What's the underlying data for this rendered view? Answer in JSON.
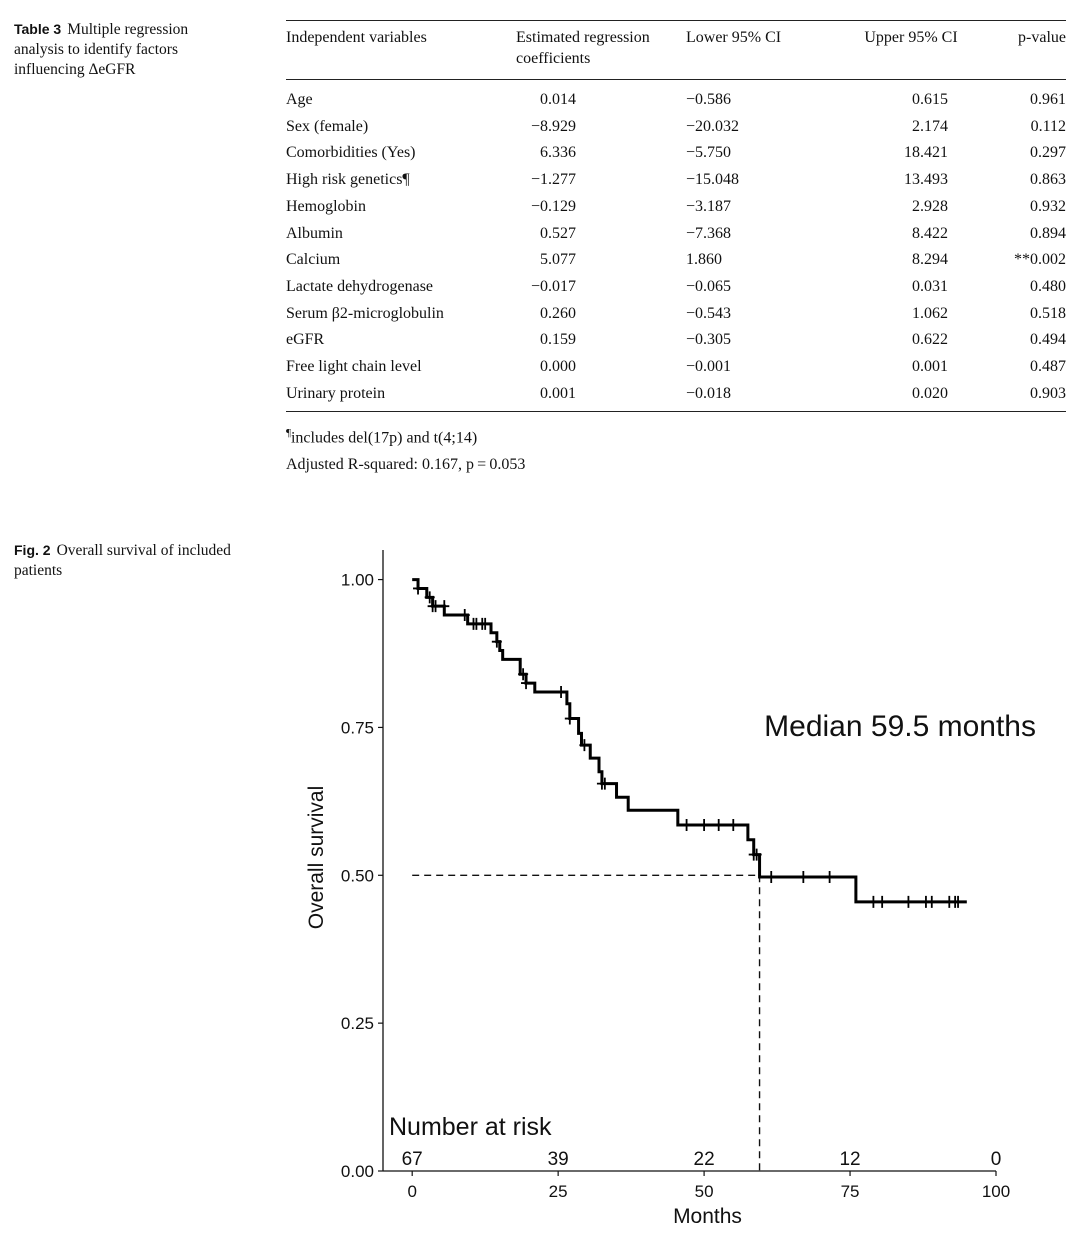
{
  "table3": {
    "label": "Table 3",
    "caption": "Multiple regression analysis to identify factors influencing ΔeGFR",
    "headers": [
      "Independent variables",
      "Estimated regression coefficients",
      "Lower 95% CI",
      "Upper 95% CI",
      "p-value"
    ],
    "rows": [
      [
        "Age",
        "0.014",
        "−0.586",
        "0.615",
        "0.961"
      ],
      [
        "Sex (female)",
        "−8.929",
        "−20.032",
        "2.174",
        "0.112"
      ],
      [
        "Comorbidities (Yes)",
        "6.336",
        "−5.750",
        "18.421",
        "0.297"
      ],
      [
        "High risk genetics¶",
        "−1.277",
        "−15.048",
        "13.493",
        "0.863"
      ],
      [
        "Hemoglobin",
        "−0.129",
        "−3.187",
        "2.928",
        "0.932"
      ],
      [
        "Albumin",
        "0.527",
        "−7.368",
        "8.422",
        "0.894"
      ],
      [
        "Calcium",
        "5.077",
        "1.860",
        "8.294",
        "**0.002"
      ],
      [
        "Lactate dehydrogenase",
        "−0.017",
        "−0.065",
        "0.031",
        "0.480"
      ],
      [
        "Serum β2-microglobulin",
        "0.260",
        "−0.543",
        "1.062",
        "0.518"
      ],
      [
        "eGFR",
        "0.159",
        "−0.305",
        "0.622",
        "0.494"
      ],
      [
        "Free light chain level",
        "0.000",
        "−0.001",
        "0.001",
        "0.487"
      ],
      [
        "Urinary protein",
        "0.001",
        "−0.018",
        "0.020",
        "0.903"
      ]
    ],
    "footnote_mark": "¶",
    "footnote_text": "includes del(17p) and t(4;14)",
    "adjusted_r2": "Adjusted R-squared: 0.167, p = 0.053"
  },
  "fig2": {
    "label": "Fig. 2",
    "caption": "Overall survival of included patients"
  },
  "chart_data": {
    "type": "line",
    "xlabel": "Months",
    "ylabel": "Overall survival",
    "xlim": [
      -5,
      100
    ],
    "ylim": [
      0,
      1.05
    ],
    "xticks": [
      0,
      25,
      50,
      75,
      100
    ],
    "yticks": [
      "0.00",
      "0.25",
      "0.50",
      "0.75",
      "1.00"
    ],
    "ytick_values": [
      0,
      0.25,
      0.5,
      0.75,
      1.0
    ],
    "annotation": "Median 59.5 months",
    "median_months": 59.5,
    "median_survival": 0.5,
    "risk_table_title": "Number at risk",
    "risk_times": [
      0,
      25,
      50,
      75,
      100
    ],
    "risk_counts": [
      "67",
      "39",
      "22",
      "12",
      "0"
    ],
    "series": [
      {
        "steps": [
          [
            0,
            1.0
          ],
          [
            1,
            0.985
          ],
          [
            2.5,
            0.97
          ],
          [
            3.5,
            0.955
          ],
          [
            5.5,
            0.94
          ],
          [
            9.5,
            0.925
          ],
          [
            13.5,
            0.91
          ],
          [
            14.5,
            0.895
          ],
          [
            15,
            0.88
          ],
          [
            15.5,
            0.865
          ],
          [
            18.5,
            0.84
          ],
          [
            19.5,
            0.825
          ],
          [
            21,
            0.81
          ],
          [
            26.5,
            0.79
          ],
          [
            27,
            0.765
          ],
          [
            28.5,
            0.74
          ],
          [
            29,
            0.72
          ],
          [
            30.5,
            0.698
          ],
          [
            32,
            0.675
          ],
          [
            32.5,
            0.655
          ],
          [
            35,
            0.632
          ],
          [
            37,
            0.61
          ],
          [
            45.5,
            0.585
          ],
          [
            57.5,
            0.56
          ],
          [
            58.5,
            0.535
          ],
          [
            59.5,
            0.497
          ],
          [
            76,
            0.455
          ],
          [
            95,
            0.455
          ]
        ],
        "censored": [
          [
            1,
            0.985
          ],
          [
            3,
            0.97
          ],
          [
            3.5,
            0.955
          ],
          [
            4,
            0.955
          ],
          [
            5.5,
            0.955
          ],
          [
            9,
            0.94
          ],
          [
            10.5,
            0.925
          ],
          [
            11,
            0.925
          ],
          [
            12,
            0.925
          ],
          [
            12.5,
            0.925
          ],
          [
            14.5,
            0.895
          ],
          [
            19,
            0.84
          ],
          [
            19.5,
            0.825
          ],
          [
            25.5,
            0.81
          ],
          [
            27,
            0.765
          ],
          [
            29.5,
            0.72
          ],
          [
            32.5,
            0.655
          ],
          [
            33,
            0.655
          ],
          [
            47,
            0.585
          ],
          [
            50,
            0.585
          ],
          [
            52.5,
            0.585
          ],
          [
            55,
            0.585
          ],
          [
            58.5,
            0.535
          ],
          [
            59,
            0.535
          ],
          [
            61.5,
            0.497
          ],
          [
            67,
            0.497
          ],
          [
            71.5,
            0.497
          ],
          [
            79,
            0.455
          ],
          [
            80.5,
            0.455
          ],
          [
            85,
            0.455
          ],
          [
            88,
            0.455
          ],
          [
            89,
            0.455
          ],
          [
            92,
            0.455
          ],
          [
            93,
            0.455
          ],
          [
            93.5,
            0.455
          ]
        ]
      }
    ]
  }
}
